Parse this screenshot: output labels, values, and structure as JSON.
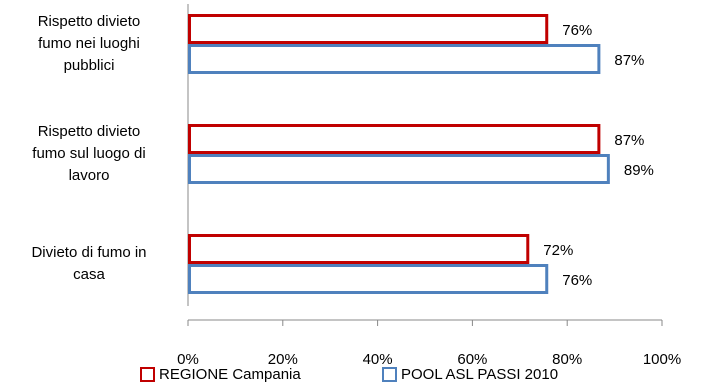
{
  "chart_data": {
    "type": "bar",
    "orientation": "horizontal",
    "categories": [
      "Rispetto divieto\nfumo nei luoghi\npubblici",
      "Rispetto divieto\nfumo sul luogo di\nlavoro",
      "Divieto di fumo in\ncasa"
    ],
    "series": [
      {
        "name": "REGIONE Campania",
        "values": [
          76,
          87,
          72
        ],
        "labels": [
          "76%",
          "87%",
          "72%"
        ],
        "color": "#c00000"
      },
      {
        "name": "POOL ASL PASSI 2010",
        "values": [
          87,
          89,
          76
        ],
        "labels": [
          "87%",
          "89%",
          "76%"
        ],
        "color": "#4f81bd"
      }
    ],
    "xlim": [
      0,
      100
    ],
    "xticks": [
      0,
      20,
      40,
      60,
      80,
      100
    ],
    "xtick_labels": [
      "0%",
      "20%",
      "40%",
      "60%",
      "80%",
      "100%"
    ],
    "title": "",
    "xlabel": "",
    "ylabel": "",
    "grid": false,
    "legend_position": "bottom"
  }
}
